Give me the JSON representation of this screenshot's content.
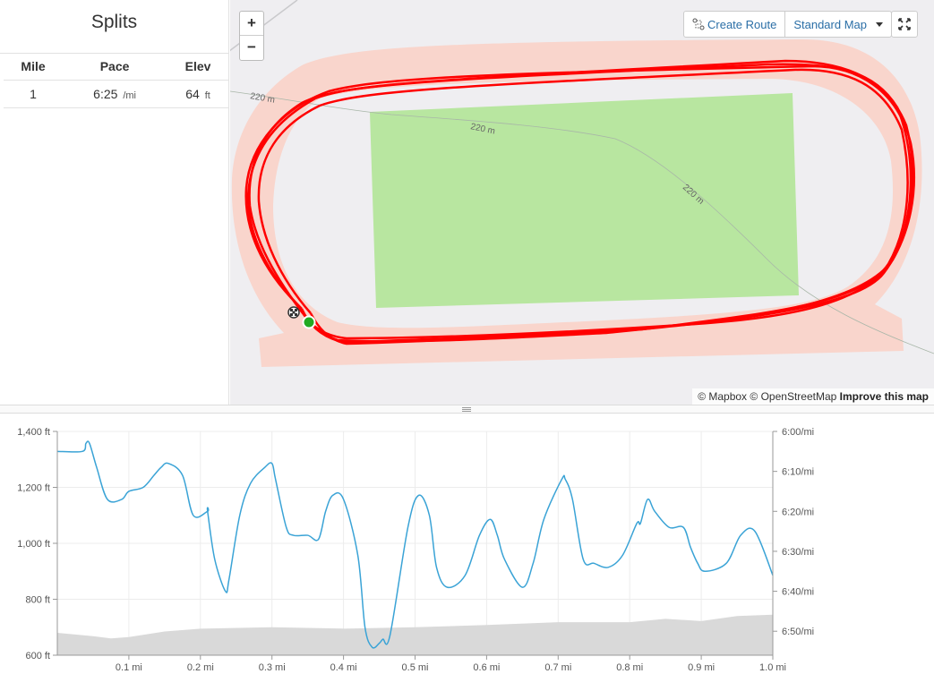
{
  "splits": {
    "title": "Splits",
    "columns": [
      "Mile",
      "Pace",
      "Elev"
    ],
    "rows": [
      {
        "mile": "1",
        "pace": "6:25",
        "pace_unit": "/mi",
        "elev": "64",
        "elev_unit": "ft"
      }
    ]
  },
  "map": {
    "zoom_in": "+",
    "zoom_out": "−",
    "create_route": "Create Route",
    "map_style": "Standard Map",
    "contour_labels": [
      "220 m",
      "220 m",
      "220 m"
    ],
    "attribution": {
      "mapbox": "© Mapbox",
      "osm": "© OpenStreetMap",
      "improve": "Improve this map"
    },
    "colors": {
      "route": "#ff0000",
      "track": "#f9d5cc",
      "field": "#b8e6a0",
      "start": "#22aa22"
    }
  },
  "chart_data": {
    "type": "line",
    "x_ticks": [
      "0.1 mi",
      "0.2 mi",
      "0.3 mi",
      "0.4 mi",
      "0.5 mi",
      "0.6 mi",
      "0.7 mi",
      "0.8 mi",
      "0.9 mi",
      "1.0 mi"
    ],
    "y_left_ticks": [
      "1,400 ft",
      "1,200 ft",
      "1,000 ft",
      "800 ft",
      "600 ft"
    ],
    "y_right_ticks": [
      "6:00/mi",
      "6:10/mi",
      "6:20/mi",
      "6:30/mi",
      "6:40/mi",
      "6:50/mi"
    ],
    "xlim": [
      0,
      1.0
    ],
    "y_left_lim": [
      600,
      1400
    ],
    "y_right_lim_seconds": [
      360,
      416
    ],
    "grid": true,
    "colors": {
      "pace": "#3aa3d6",
      "elevation": "#d9d9d9"
    },
    "series": [
      {
        "axis": "right",
        "x": [
          0.0,
          0.035,
          0.04,
          0.045,
          0.055,
          0.07,
          0.09,
          0.1,
          0.12,
          0.135,
          0.145,
          0.155,
          0.175,
          0.19,
          0.21,
          0.21,
          0.22,
          0.235,
          0.24,
          0.255,
          0.27,
          0.29,
          0.3,
          0.305,
          0.32,
          0.33,
          0.35,
          0.365,
          0.375,
          0.385,
          0.4,
          0.42,
          0.43,
          0.44,
          0.45,
          0.455,
          0.465,
          0.49,
          0.505,
          0.52,
          0.53,
          0.545,
          0.57,
          0.59,
          0.605,
          0.615,
          0.625,
          0.65,
          0.665,
          0.68,
          0.705,
          0.71,
          0.72,
          0.735,
          0.75,
          0.77,
          0.79,
          0.81,
          0.815,
          0.825,
          0.835,
          0.855,
          0.875,
          0.885,
          0.895,
          0.905,
          0.935,
          0.955,
          0.975,
          1.0
        ],
        "pace_seconds": [
          365,
          365,
          363,
          363,
          369,
          377,
          377,
          375,
          374,
          371,
          369,
          368,
          371,
          381,
          380,
          380,
          392,
          400,
          397,
          381,
          373,
          369,
          368,
          372,
          384,
          386,
          386,
          387,
          380,
          376,
          377,
          391,
          409,
          414,
          413,
          412,
          411,
          384,
          376,
          381,
          394,
          399,
          396,
          386,
          382,
          386,
          392,
          399,
          393,
          382,
          372,
          372,
          377,
          392,
          393,
          394,
          391,
          383,
          383,
          377,
          380,
          384,
          384,
          389,
          393,
          395,
          393,
          386,
          385,
          396
        ]
      },
      {
        "axis": "left",
        "name": "",
        "x": [
          0.0,
          0.05,
          0.075,
          0.1,
          0.15,
          0.2,
          0.3,
          0.4,
          0.5,
          0.6,
          0.7,
          0.8,
          0.85,
          0.9,
          0.95,
          1.0
        ],
        "elevation_ft": [
          680,
          668,
          660,
          665,
          685,
          695,
          700,
          695,
          700,
          708,
          718,
          718,
          730,
          722,
          740,
          745
        ]
      }
    ]
  }
}
